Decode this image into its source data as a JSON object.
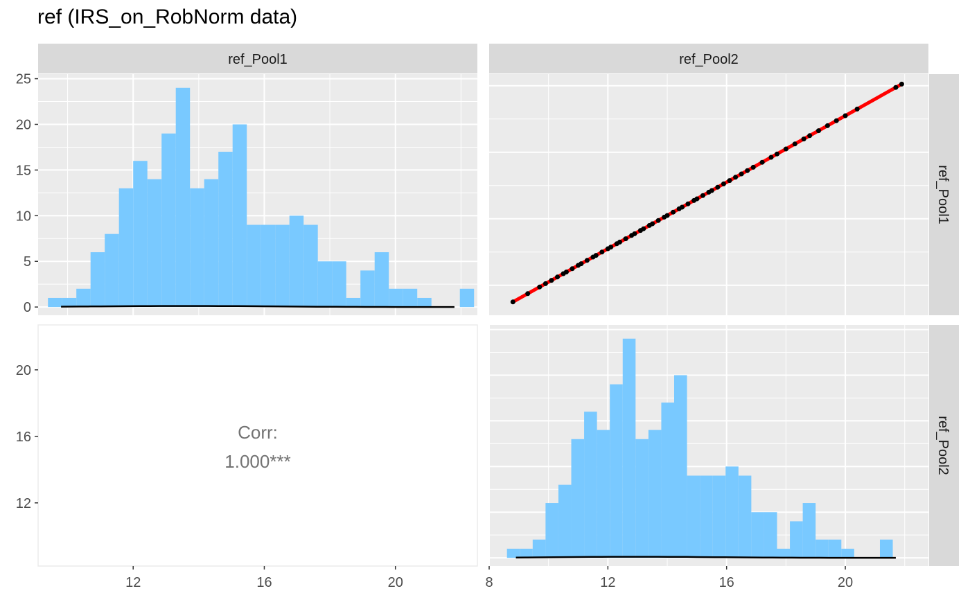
{
  "title": "ref (IRS_on_RobNorm data)",
  "colors": {
    "panel_bg": "#ebebeb",
    "strip_bg": "#d9d9d9",
    "grid": "#ffffff",
    "bar_fill": "#79c9ff",
    "fit_line": "#ff0000",
    "point": "#000000",
    "density": "#000000",
    "corr_text": "#737373"
  },
  "chart_data": [
    {
      "type": "bar",
      "panel": "top-left",
      "strip_top": "ref_Pool1",
      "x_axis": "shared with bottom-left column (ticks 12, 16, 20)",
      "xlim": [
        9.1,
        22.5
      ],
      "ylim": [
        -0.9,
        25.5
      ],
      "yticks": [
        0,
        5,
        10,
        15,
        20,
        25
      ],
      "bin_start": 9.4,
      "bin_width": 0.4333,
      "counts": [
        1,
        1,
        2,
        6,
        8,
        13,
        16,
        14,
        19,
        24,
        13,
        14,
        17,
        20,
        9,
        9,
        9,
        10,
        9,
        5,
        5,
        1,
        4,
        6,
        2,
        2,
        1,
        0,
        0,
        2
      ],
      "density_range": [
        9.8,
        21.8
      ]
    },
    {
      "type": "scatter",
      "panel": "top-right",
      "strip_top": "ref_Pool2",
      "strip_right": "ref_Pool1",
      "xlim": [
        8.0,
        22.8
      ],
      "ylim": [
        8.2,
        22.7
      ],
      "fit": "linear",
      "x": [
        8.8,
        9.3,
        9.7,
        9.9,
        10.1,
        10.3,
        10.5,
        10.6,
        10.8,
        11.0,
        11.1,
        11.3,
        11.5,
        11.6,
        11.8,
        12.0,
        12.1,
        12.3,
        12.4,
        12.6,
        12.8,
        12.9,
        13.1,
        13.2,
        13.4,
        13.5,
        13.7,
        13.9,
        14.0,
        14.2,
        14.4,
        14.5,
        14.7,
        14.9,
        15.0,
        15.2,
        15.4,
        15.5,
        15.7,
        15.9,
        16.1,
        16.3,
        16.5,
        16.7,
        16.9,
        17.2,
        17.5,
        17.7,
        18.0,
        18.3,
        18.6,
        18.8,
        19.1,
        19.4,
        19.7,
        20.0,
        20.4,
        21.7,
        21.9
      ],
      "y": [
        9.0,
        9.5,
        9.9,
        10.1,
        10.3,
        10.5,
        10.7,
        10.8,
        11.0,
        11.2,
        11.3,
        11.5,
        11.7,
        11.8,
        12.0,
        12.2,
        12.3,
        12.5,
        12.6,
        12.8,
        13.0,
        13.1,
        13.3,
        13.4,
        13.6,
        13.7,
        13.9,
        14.1,
        14.2,
        14.4,
        14.6,
        14.7,
        14.9,
        15.1,
        15.2,
        15.4,
        15.6,
        15.7,
        15.9,
        16.1,
        16.3,
        16.5,
        16.7,
        16.9,
        17.1,
        17.4,
        17.7,
        17.9,
        18.2,
        18.5,
        18.8,
        19.0,
        19.3,
        19.6,
        19.9,
        20.2,
        20.6,
        21.9,
        22.1
      ]
    },
    {
      "type": "table",
      "panel": "bottom-left",
      "label": "Corr:",
      "value": "1.000***",
      "xlim": [
        9.1,
        22.5
      ],
      "ylim": [
        8.2,
        22.7
      ],
      "xticks": [
        12,
        16,
        20
      ],
      "yticks": [
        12,
        16,
        20
      ]
    },
    {
      "type": "bar",
      "panel": "bottom-right",
      "strip_right": "ref_Pool2",
      "xlim": [
        8.0,
        22.8
      ],
      "xticks": [
        8,
        12,
        16,
        20
      ],
      "bin_start": 8.6,
      "bin_width": 0.4333,
      "counts": [
        1,
        1,
        2,
        6,
        8,
        13,
        16,
        14,
        19,
        24,
        13,
        14,
        17,
        20,
        9,
        9,
        9,
        10,
        9,
        5,
        5,
        1,
        4,
        6,
        2,
        2,
        1,
        0,
        0,
        2
      ],
      "density_range": [
        8.9,
        21.7
      ]
    }
  ]
}
